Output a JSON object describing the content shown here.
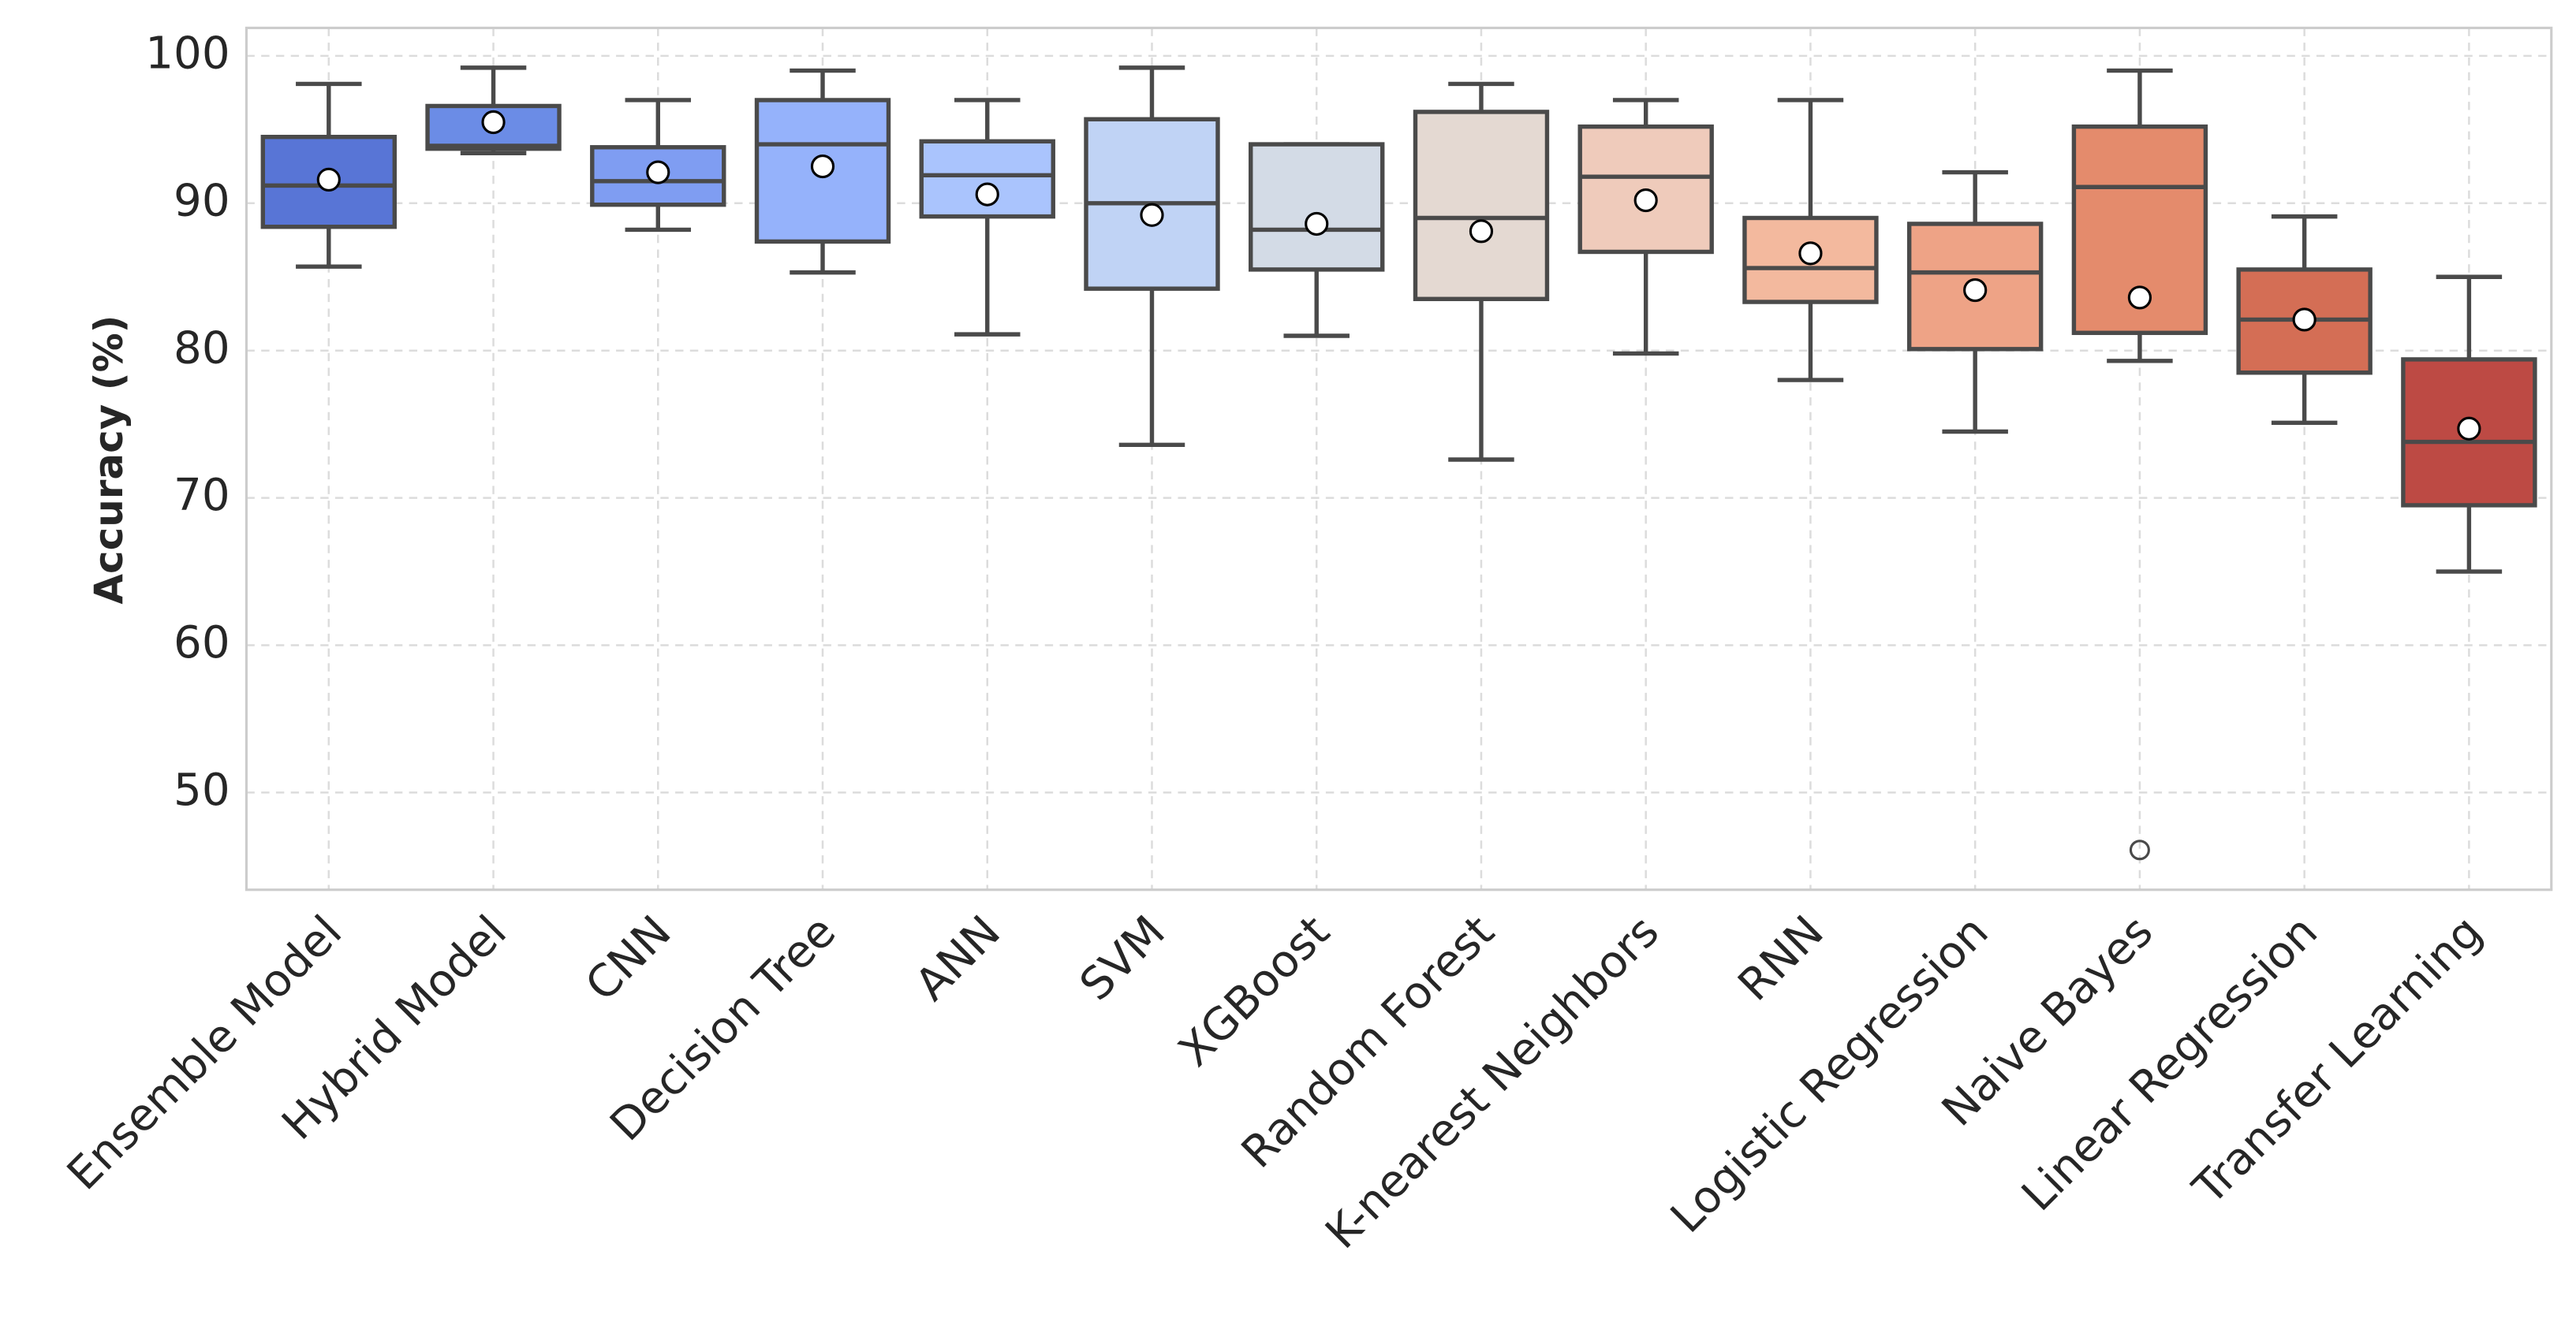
{
  "chart_data": {
    "type": "box",
    "y_label": "Accuracy (%)",
    "categories": [
      "Ensemble Model",
      "Hybrid Model",
      "CNN",
      "Decision Tree",
      "ANN",
      "SVM",
      "XGBoost",
      "Random Forest",
      "K-nearest Neighbors",
      "RNN",
      "Logistic Regression",
      "Naive Bayes",
      "Linear Regression",
      "Transfer Learning"
    ],
    "colors": [
      "#5875d6",
      "#6b8ce6",
      "#7f9df2",
      "#95b2fb",
      "#aac4fd",
      "#c0d3f5",
      "#d3dbe6",
      "#e4d9d2",
      "#efcbbb",
      "#f3b99e",
      "#eea386",
      "#e48b6c",
      "#d46e55",
      "#bd4a44"
    ],
    "boxes": [
      {
        "whislo": 85.7,
        "q1": 88.4,
        "med": 91.2,
        "q3": 94.5,
        "whishi": 98.1,
        "mean": 91.6
      },
      {
        "whislo": 93.4,
        "q1": 93.7,
        "med": 93.9,
        "q3": 96.6,
        "whishi": 99.2,
        "mean": 95.5
      },
      {
        "whislo": 88.2,
        "q1": 89.9,
        "med": 91.5,
        "q3": 93.8,
        "whishi": 97.0,
        "mean": 92.1
      },
      {
        "whislo": 85.3,
        "q1": 87.4,
        "med": 94.0,
        "q3": 97.0,
        "whishi": 99.0,
        "mean": 92.5
      },
      {
        "whislo": 81.1,
        "q1": 89.1,
        "med": 91.9,
        "q3": 94.2,
        "whishi": 97.0,
        "mean": 90.6
      },
      {
        "whislo": 73.6,
        "q1": 84.2,
        "med": 90.0,
        "q3": 95.7,
        "whishi": 99.2,
        "mean": 89.2
      },
      {
        "whislo": 81.0,
        "q1": 85.5,
        "med": 88.2,
        "q3": 94.0,
        "whishi": 94.0,
        "mean": 88.6
      },
      {
        "whislo": 72.6,
        "q1": 83.5,
        "med": 89.0,
        "q3": 96.2,
        "whishi": 98.1,
        "mean": 88.1
      },
      {
        "whislo": 79.8,
        "q1": 86.7,
        "med": 91.8,
        "q3": 95.2,
        "whishi": 97.0,
        "mean": 90.2
      },
      {
        "whislo": 78.0,
        "q1": 83.3,
        "med": 85.6,
        "q3": 89.0,
        "whishi": 97.0,
        "mean": 86.6
      },
      {
        "whislo": 74.5,
        "q1": 80.1,
        "med": 85.3,
        "q3": 88.6,
        "whishi": 92.1,
        "mean": 84.1
      },
      {
        "whislo": 79.3,
        "q1": 81.2,
        "med": 91.1,
        "q3": 95.2,
        "whishi": 99.0,
        "mean": 83.6,
        "fliers": [
          46.1
        ]
      },
      {
        "whislo": 75.1,
        "q1": 78.5,
        "med": 82.1,
        "q3": 85.5,
        "whishi": 89.1,
        "mean": 82.1
      },
      {
        "whislo": 65.0,
        "q1": 69.5,
        "med": 73.8,
        "q3": 79.4,
        "whishi": 85.0,
        "mean": 74.7
      }
    ],
    "ylim": [
      43.4,
      101.9
    ],
    "yticks": [
      50,
      60,
      70,
      80,
      90,
      100
    ],
    "grid": true
  }
}
